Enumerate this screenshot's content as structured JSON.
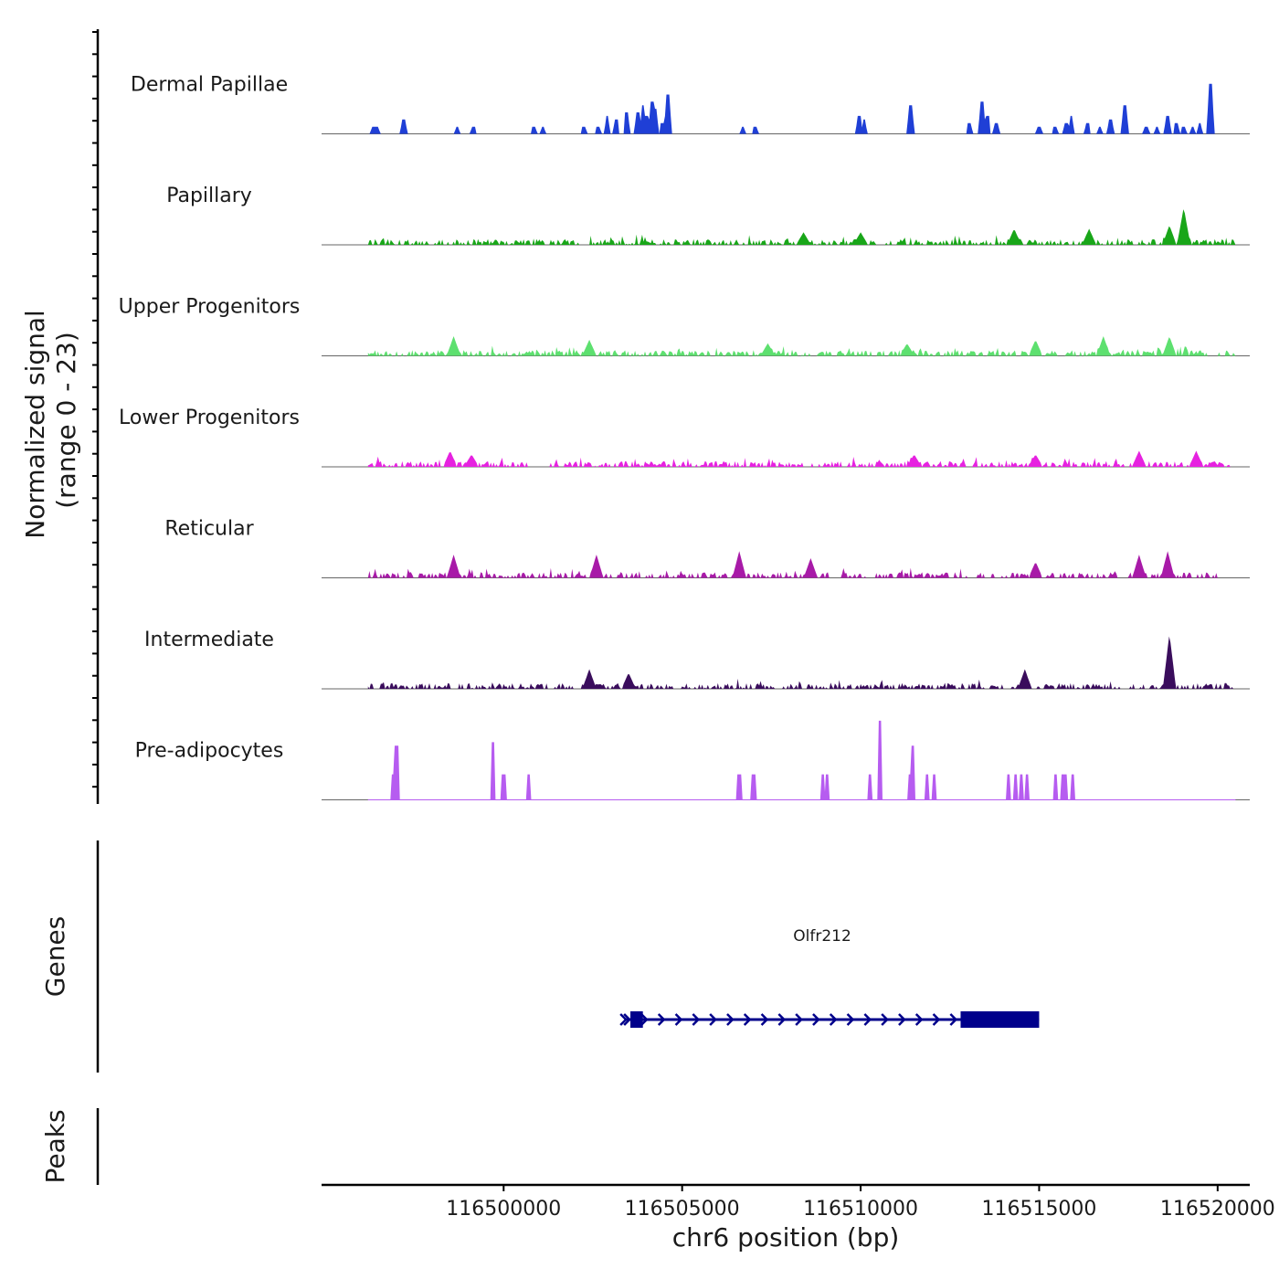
{
  "chart_data": {
    "type": "area",
    "title": "",
    "ylabel_line1": "Normalized signal",
    "ylabel_line2": "(range 0 - 23)",
    "ylim": [
      0,
      23
    ],
    "xlabel": "chr6 position (bp)",
    "xlim": [
      116494900,
      116520900
    ],
    "xticks": [
      116500000,
      116505000,
      116510000,
      116515000,
      116520000
    ],
    "xtick_labels": [
      "116500000",
      "116505000",
      "116510000",
      "116515000",
      "116520000"
    ],
    "coverage_region": [
      116496200,
      116520500
    ],
    "tracks": [
      {
        "name": "Dermal Papillae",
        "color": "#1f3fd6",
        "style": "blocky",
        "peaks": [
          {
            "pos": 116496350,
            "h": 2
          },
          {
            "pos": 116496450,
            "h": 2
          },
          {
            "pos": 116497200,
            "h": 4
          },
          {
            "pos": 116498700,
            "h": 2
          },
          {
            "pos": 116499150,
            "h": 2
          },
          {
            "pos": 116500850,
            "h": 2
          },
          {
            "pos": 116501100,
            "h": 2
          },
          {
            "pos": 116502250,
            "h": 2
          },
          {
            "pos": 116502650,
            "h": 2
          },
          {
            "pos": 116502900,
            "h": 5
          },
          {
            "pos": 116503150,
            "h": 4
          },
          {
            "pos": 116503450,
            "h": 6
          },
          {
            "pos": 116503750,
            "h": 6
          },
          {
            "pos": 116503900,
            "h": 8
          },
          {
            "pos": 116504000,
            "h": 5
          },
          {
            "pos": 116504150,
            "h": 9
          },
          {
            "pos": 116504250,
            "h": 7
          },
          {
            "pos": 116504450,
            "h": 3
          },
          {
            "pos": 116504600,
            "h": 11
          },
          {
            "pos": 116506700,
            "h": 2
          },
          {
            "pos": 116507050,
            "h": 2
          },
          {
            "pos": 116509950,
            "h": 5
          },
          {
            "pos": 116510100,
            "h": 4
          },
          {
            "pos": 116511400,
            "h": 8
          },
          {
            "pos": 116513050,
            "h": 3
          },
          {
            "pos": 116513400,
            "h": 9
          },
          {
            "pos": 116513550,
            "h": 5
          },
          {
            "pos": 116513800,
            "h": 3
          },
          {
            "pos": 116515000,
            "h": 2
          },
          {
            "pos": 116515450,
            "h": 2
          },
          {
            "pos": 116515750,
            "h": 3
          },
          {
            "pos": 116515900,
            "h": 5
          },
          {
            "pos": 116516350,
            "h": 3
          },
          {
            "pos": 116516700,
            "h": 2
          },
          {
            "pos": 116517000,
            "h": 4
          },
          {
            "pos": 116517400,
            "h": 8
          },
          {
            "pos": 116518000,
            "h": 2
          },
          {
            "pos": 116518300,
            "h": 2
          },
          {
            "pos": 116518600,
            "h": 5
          },
          {
            "pos": 116518850,
            "h": 3
          },
          {
            "pos": 116519050,
            "h": 2
          },
          {
            "pos": 116519300,
            "h": 2
          },
          {
            "pos": 116519500,
            "h": 3
          },
          {
            "pos": 116519800,
            "h": 14
          }
        ],
        "zero_ranges": []
      },
      {
        "name": "Papillary",
        "color": "#19a619",
        "style": "noisy",
        "peaks": [
          {
            "pos": 116508400,
            "h": 3
          },
          {
            "pos": 116510000,
            "h": 3
          },
          {
            "pos": 116514300,
            "h": 4
          },
          {
            "pos": 116516400,
            "h": 4
          },
          {
            "pos": 116518650,
            "h": 5
          },
          {
            "pos": 116519050,
            "h": 10
          }
        ],
        "zero_ranges": []
      },
      {
        "name": "Upper Progenitors",
        "color": "#5de06f",
        "style": "noisy",
        "peaks": [
          {
            "pos": 116498600,
            "h": 5
          },
          {
            "pos": 116502400,
            "h": 4
          },
          {
            "pos": 116507400,
            "h": 3
          },
          {
            "pos": 116511300,
            "h": 3
          },
          {
            "pos": 116514900,
            "h": 4
          },
          {
            "pos": 116516800,
            "h": 5
          },
          {
            "pos": 116518650,
            "h": 5
          }
        ],
        "zero_ranges": []
      },
      {
        "name": "Lower Progenitors",
        "color": "#e622e0",
        "style": "noisy",
        "peaks": [
          {
            "pos": 116498500,
            "h": 4
          },
          {
            "pos": 116499100,
            "h": 3
          },
          {
            "pos": 116511500,
            "h": 3
          },
          {
            "pos": 116514900,
            "h": 3
          },
          {
            "pos": 116517800,
            "h": 4
          },
          {
            "pos": 116519400,
            "h": 4
          }
        ],
        "zero_ranges": [
          [
            116500700,
            116501300
          ]
        ]
      },
      {
        "name": "Reticular",
        "color": "#a81aa8",
        "style": "noisy",
        "peaks": [
          {
            "pos": 116498600,
            "h": 6
          },
          {
            "pos": 116502600,
            "h": 6
          },
          {
            "pos": 116506600,
            "h": 7
          },
          {
            "pos": 116508600,
            "h": 5
          },
          {
            "pos": 116514900,
            "h": 4
          },
          {
            "pos": 116517800,
            "h": 6
          },
          {
            "pos": 116518600,
            "h": 7
          }
        ],
        "zero_ranges": [
          [
            116517200,
            116517500
          ],
          [
            116520000,
            116520500
          ]
        ]
      },
      {
        "name": "Intermediate",
        "color": "#3a0d5c",
        "style": "noisy",
        "peaks": [
          {
            "pos": 116502400,
            "h": 5
          },
          {
            "pos": 116503500,
            "h": 4
          },
          {
            "pos": 116514600,
            "h": 5
          },
          {
            "pos": 116518650,
            "h": 15
          }
        ],
        "zero_ranges": []
      },
      {
        "name": "Pre-adipocytes",
        "color": "#b65cf0",
        "style": "spikes",
        "peaks": [
          {
            "pos": 116496900,
            "h": 7
          },
          {
            "pos": 116497000,
            "h": 15
          },
          {
            "pos": 116499700,
            "h": 16
          },
          {
            "pos": 116500000,
            "h": 7
          },
          {
            "pos": 116500700,
            "h": 7
          },
          {
            "pos": 116506600,
            "h": 7
          },
          {
            "pos": 116507000,
            "h": 7
          },
          {
            "pos": 116508950,
            "h": 7
          },
          {
            "pos": 116509050,
            "h": 7
          },
          {
            "pos": 116510250,
            "h": 7
          },
          {
            "pos": 116510550,
            "h": 22
          },
          {
            "pos": 116511400,
            "h": 7
          },
          {
            "pos": 116511450,
            "h": 15
          },
          {
            "pos": 116511850,
            "h": 7
          },
          {
            "pos": 116512050,
            "h": 7
          },
          {
            "pos": 116514150,
            "h": 7
          },
          {
            "pos": 116514350,
            "h": 7
          },
          {
            "pos": 116514500,
            "h": 7
          },
          {
            "pos": 116514650,
            "h": 7
          },
          {
            "pos": 116515450,
            "h": 7
          },
          {
            "pos": 116515650,
            "h": 7
          },
          {
            "pos": 116515750,
            "h": 7
          },
          {
            "pos": 116515950,
            "h": 7
          }
        ],
        "zero_ranges": []
      }
    ],
    "genes_label": "Genes",
    "gene": {
      "name": "Olfr212",
      "color": "#00008b",
      "strand": "+",
      "start": 116503400,
      "end": 116515000,
      "exons": [
        [
          116503550,
          116503900
        ],
        [
          116512800,
          116515000
        ]
      ]
    },
    "peaks_label": "Peaks"
  }
}
